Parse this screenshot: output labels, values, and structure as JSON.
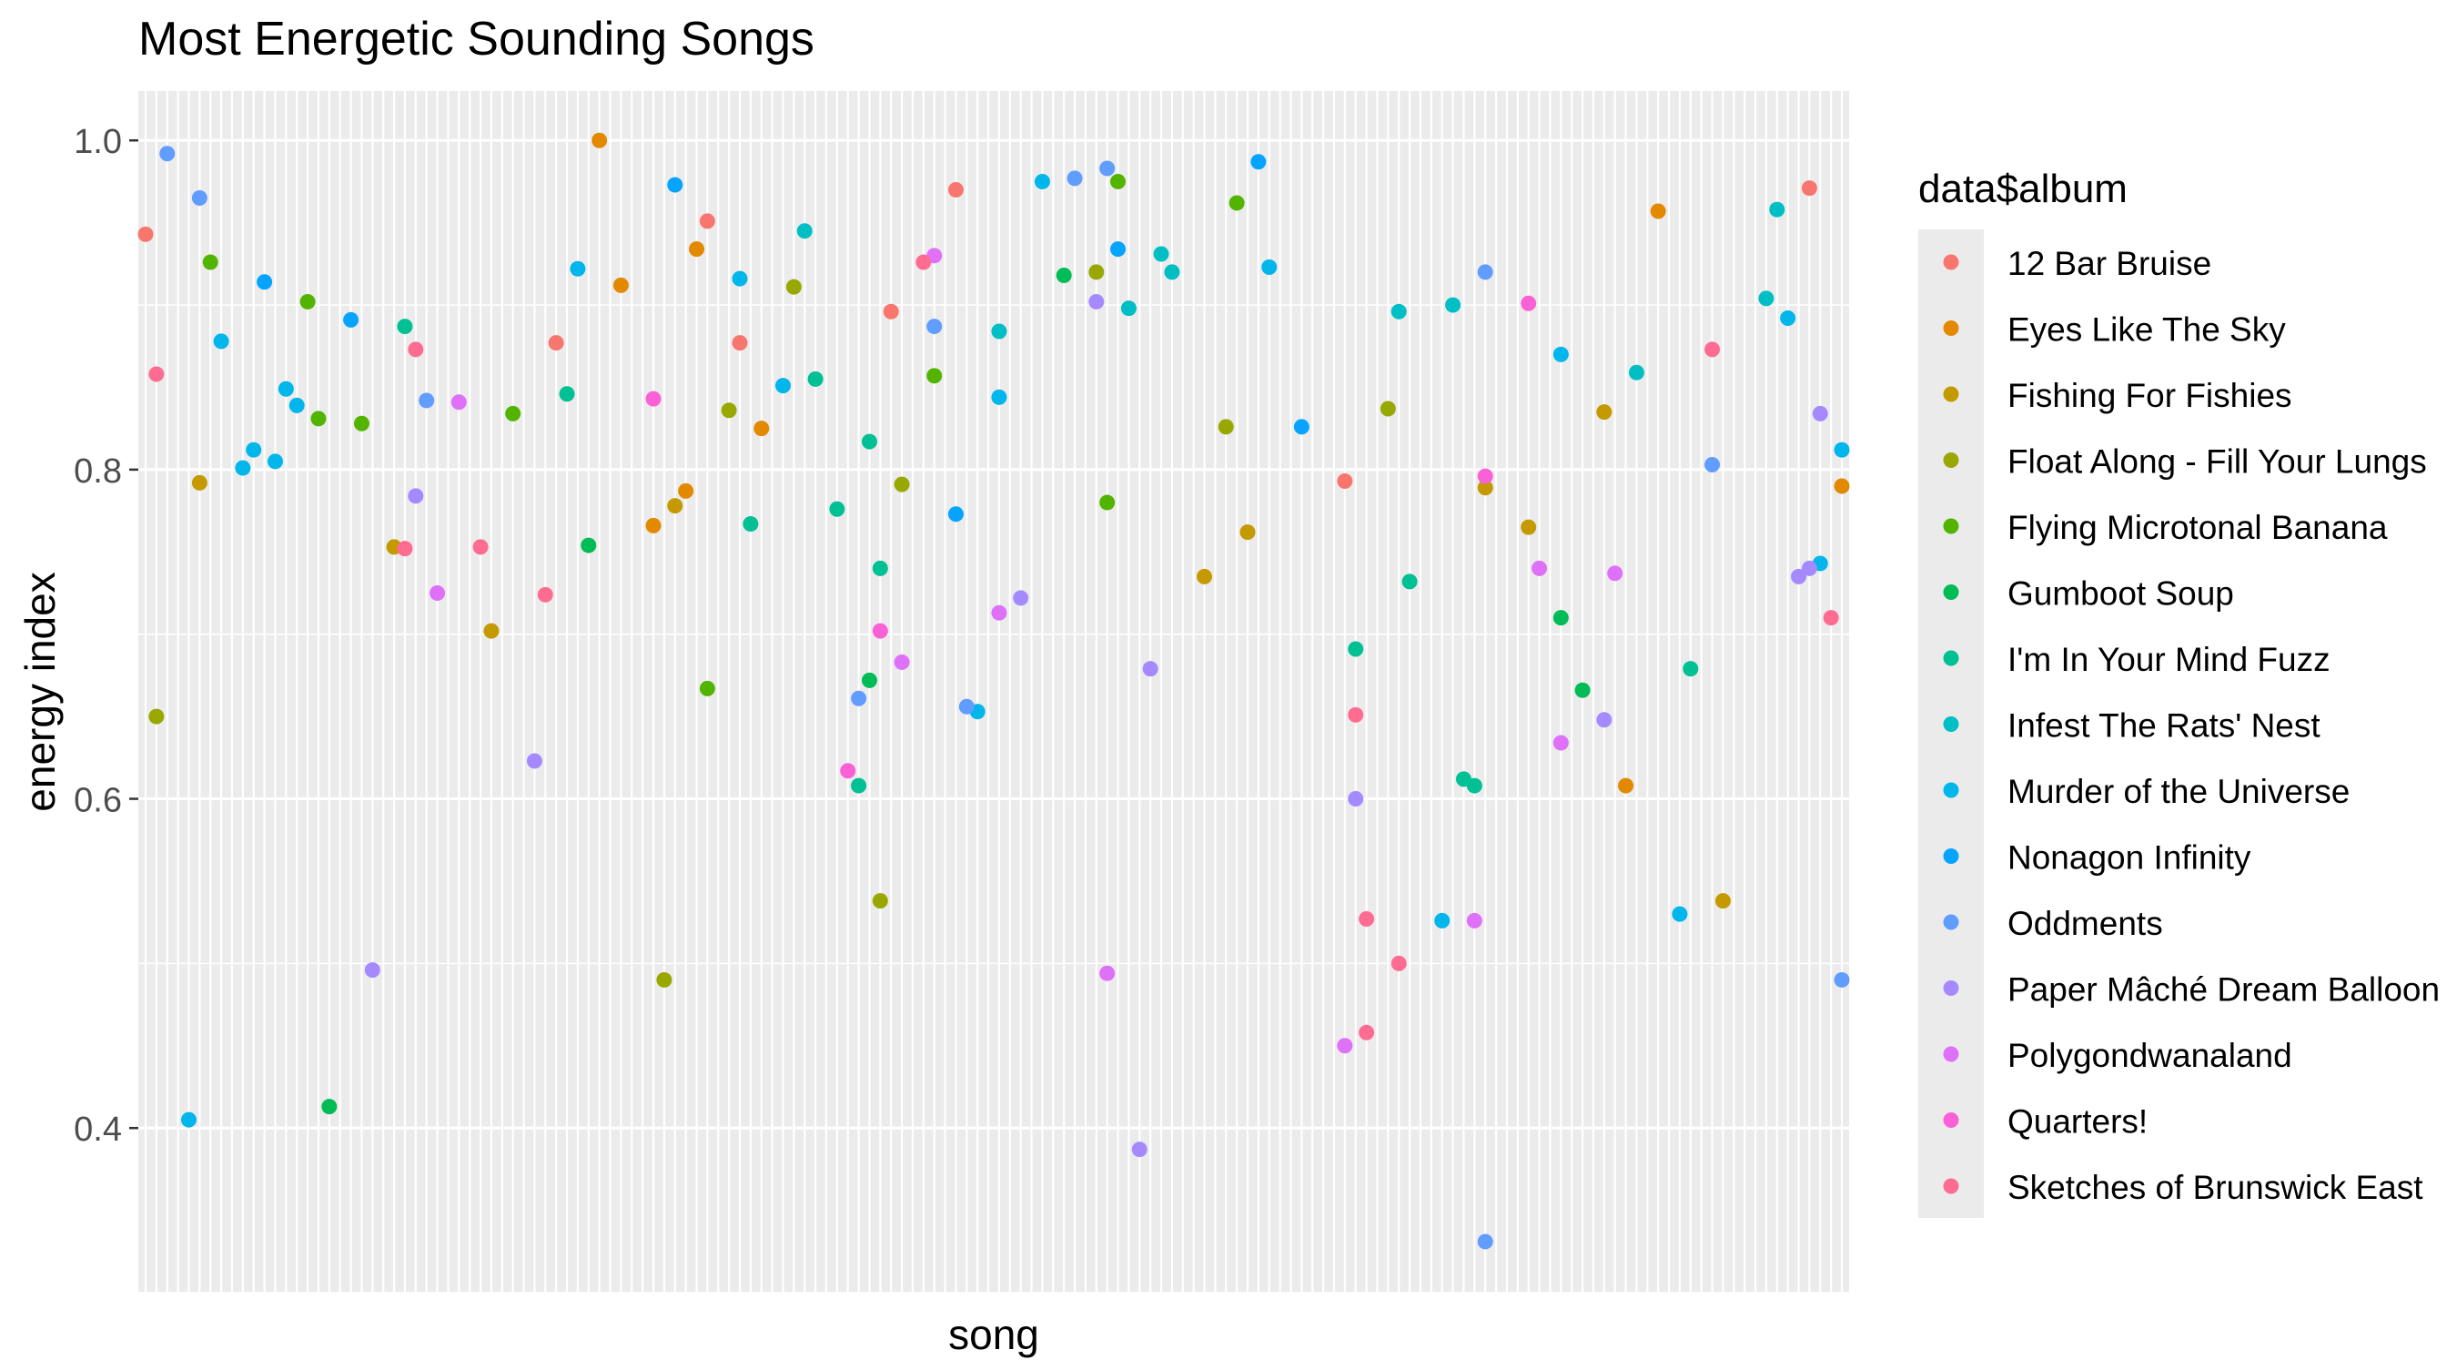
{
  "chart_data": {
    "type": "scatter",
    "title": "Most Energetic Sounding Songs",
    "xlabel": "song",
    "ylabel": "energy index",
    "ylim": [
      0.3,
      1.03
    ],
    "yticks": [
      0.4,
      0.6,
      0.8,
      1.0
    ],
    "ytick_labels": [
      "0.4",
      "0.6",
      "0.8",
      "1.0"
    ],
    "x_tick_labels_shown": false,
    "grid": true,
    "legend_title": "data$album",
    "legend_position": "right",
    "series": [
      {
        "name": "12 Bar Bruise",
        "color": "#F8766D",
        "points": [
          [
            1,
            0.943
          ],
          [
            39,
            0.877
          ],
          [
            53,
            0.951
          ],
          [
            56,
            0.877
          ],
          [
            70,
            0.896
          ],
          [
            76,
            0.97
          ],
          [
            112,
            0.793
          ],
          [
            155,
            0.971
          ]
        ]
      },
      {
        "name": "Eyes Like The Sky",
        "color": "#E38900",
        "points": [
          [
            43,
            1.0
          ],
          [
            45,
            0.912
          ],
          [
            48,
            0.766
          ],
          [
            51,
            0.787
          ],
          [
            52,
            0.934
          ],
          [
            58,
            0.825
          ],
          [
            138,
            0.608
          ],
          [
            141,
            0.957
          ],
          [
            158,
            0.79
          ]
        ]
      },
      {
        "name": "Fishing For Fishies",
        "color": "#C49A00",
        "points": [
          [
            6,
            0.792
          ],
          [
            24,
            0.753
          ],
          [
            33,
            0.702
          ],
          [
            50,
            0.778
          ],
          [
            99,
            0.735
          ],
          [
            103,
            0.762
          ],
          [
            125,
            0.789
          ],
          [
            129,
            0.765
          ],
          [
            136,
            0.835
          ],
          [
            147,
            0.538
          ]
        ]
      },
      {
        "name": "Float Along - Fill Your Lungs",
        "color": "#99A800",
        "points": [
          [
            2,
            0.65
          ],
          [
            49,
            0.49
          ],
          [
            55,
            0.836
          ],
          [
            61,
            0.911
          ],
          [
            69,
            0.538
          ],
          [
            71,
            0.791
          ],
          [
            89,
            0.92
          ],
          [
            101,
            0.826
          ],
          [
            116,
            0.837
          ]
        ]
      },
      {
        "name": "Flying Microtonal Banana",
        "color": "#53B400",
        "points": [
          [
            7,
            0.926
          ],
          [
            16,
            0.902
          ],
          [
            17,
            0.831
          ],
          [
            21,
            0.828
          ],
          [
            35,
            0.834
          ],
          [
            53,
            0.667
          ],
          [
            74,
            0.857
          ],
          [
            90,
            0.78
          ],
          [
            91,
            0.975
          ],
          [
            102,
            0.962
          ]
        ]
      },
      {
        "name": "Gumboot Soup",
        "color": "#00BC56",
        "points": [
          [
            18,
            0.413
          ],
          [
            42,
            0.754
          ],
          [
            68,
            0.672
          ],
          [
            86,
            0.918
          ],
          [
            132,
            0.71
          ],
          [
            134,
            0.666
          ]
        ]
      },
      {
        "name": "I'm In Your Mind Fuzz",
        "color": "#00C094",
        "points": [
          [
            25,
            0.887
          ],
          [
            40,
            0.846
          ],
          [
            57,
            0.767
          ],
          [
            63,
            0.855
          ],
          [
            65,
            0.776
          ],
          [
            67,
            0.608
          ],
          [
            68,
            0.817
          ],
          [
            69,
            0.74
          ],
          [
            113,
            0.691
          ],
          [
            118,
            0.732
          ],
          [
            123,
            0.612
          ],
          [
            124,
            0.608
          ],
          [
            144,
            0.679
          ]
        ]
      },
      {
        "name": "Infest The Rats' Nest",
        "color": "#00BFC4",
        "points": [
          [
            62,
            0.945
          ],
          [
            80,
            0.884
          ],
          [
            92,
            0.898
          ],
          [
            95,
            0.931
          ],
          [
            96,
            0.92
          ],
          [
            117,
            0.896
          ],
          [
            122,
            0.9
          ],
          [
            139,
            0.859
          ],
          [
            151,
            0.904
          ],
          [
            152,
            0.958
          ]
        ]
      },
      {
        "name": "Murder of the Universe",
        "color": "#00B6EB",
        "points": [
          [
            5,
            0.405
          ],
          [
            8,
            0.878
          ],
          [
            10,
            0.801
          ],
          [
            11,
            0.812
          ],
          [
            13,
            0.805
          ],
          [
            14,
            0.849
          ],
          [
            15,
            0.839
          ],
          [
            41,
            0.922
          ],
          [
            56,
            0.916
          ],
          [
            60,
            0.851
          ],
          [
            78,
            0.653
          ],
          [
            80,
            0.844
          ],
          [
            84,
            0.975
          ],
          [
            105,
            0.923
          ],
          [
            121,
            0.526
          ],
          [
            132,
            0.87
          ],
          [
            143,
            0.53
          ],
          [
            153,
            0.892
          ],
          [
            156,
            0.743
          ],
          [
            158,
            0.812
          ]
        ]
      },
      {
        "name": "Nonagon Infinity",
        "color": "#06A4FF",
        "points": [
          [
            12,
            0.914
          ],
          [
            20,
            0.891
          ],
          [
            50,
            0.973
          ],
          [
            76,
            0.773
          ],
          [
            91,
            0.934
          ],
          [
            104,
            0.987
          ],
          [
            108,
            0.826
          ]
        ]
      },
      {
        "name": "Oddments",
        "color": "#619CFF",
        "points": [
          [
            3,
            0.992
          ],
          [
            6,
            0.965
          ],
          [
            27,
            0.842
          ],
          [
            67,
            0.661
          ],
          [
            74,
            0.887
          ],
          [
            77,
            0.656
          ],
          [
            87,
            0.977
          ],
          [
            90,
            0.983
          ],
          [
            125,
            0.92
          ],
          [
            146,
            0.803
          ],
          [
            158,
            0.49
          ],
          [
            125,
            0.331
          ]
        ]
      },
      {
        "name": "Paper Mâché Dream Balloon",
        "color": "#A58AFF",
        "points": [
          [
            22,
            0.496
          ],
          [
            26,
            0.784
          ],
          [
            37,
            0.623
          ],
          [
            82,
            0.722
          ],
          [
            89,
            0.902
          ],
          [
            93,
            0.387
          ],
          [
            94,
            0.679
          ],
          [
            113,
            0.6
          ],
          [
            136,
            0.648
          ],
          [
            154,
            0.735
          ],
          [
            155,
            0.74
          ],
          [
            156,
            0.834
          ]
        ]
      },
      {
        "name": "Polygondwanaland",
        "color": "#DF70F8",
        "points": [
          [
            28,
            0.725
          ],
          [
            30,
            0.841
          ],
          [
            71,
            0.683
          ],
          [
            74,
            0.93
          ],
          [
            80,
            0.713
          ],
          [
            90,
            0.494
          ],
          [
            112,
            0.45
          ],
          [
            124,
            0.526
          ],
          [
            130,
            0.74
          ],
          [
            132,
            0.634
          ],
          [
            137,
            0.737
          ]
        ]
      },
      {
        "name": "Quarters!",
        "color": "#FB61D7",
        "points": [
          [
            48,
            0.843
          ],
          [
            66,
            0.617
          ],
          [
            69,
            0.702
          ],
          [
            125,
            0.796
          ],
          [
            129,
            0.901
          ]
        ]
      },
      {
        "name": "Sketches of Brunswick East",
        "color": "#FF6C91",
        "points": [
          [
            2,
            0.858
          ],
          [
            26,
            0.873
          ],
          [
            25,
            0.752
          ],
          [
            32,
            0.753
          ],
          [
            38,
            0.724
          ],
          [
            73,
            0.926
          ],
          [
            113,
            0.651
          ],
          [
            114,
            0.527
          ],
          [
            117,
            0.5
          ],
          [
            114,
            0.458
          ],
          [
            146,
            0.873
          ],
          [
            157,
            0.71
          ]
        ]
      }
    ]
  }
}
